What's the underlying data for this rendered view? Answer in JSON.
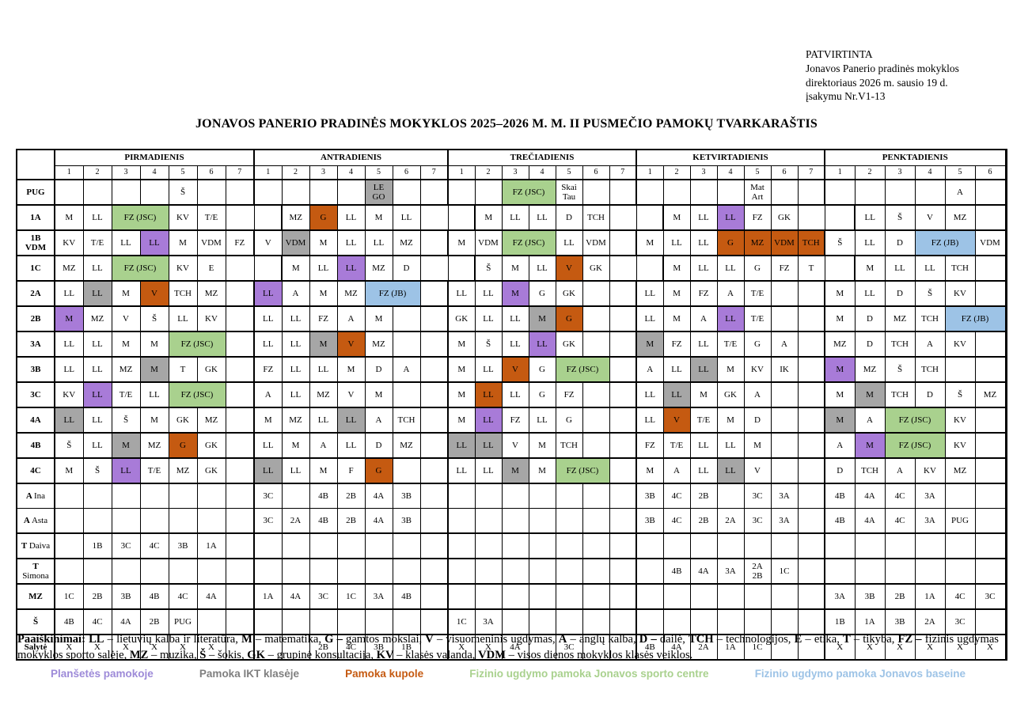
{
  "approval": {
    "l1": "PATVIRTINTA",
    "l2": "Jonavos Panerio pradinės mokyklos",
    "l3": "direktoriaus 2026 m. sausio 19 d.",
    "l4": "įsakymu Nr.V1-13"
  },
  "title": "JONAVOS PANERIO PRADINĖS MOKYKLOS 2025–2026 M. M. II PUSMEČIO PAMOKŲ TVARKARAŠTIS",
  "colors": {
    "g": "#a9d18e",
    "p": "#a87bd8",
    "y": "#a6a6a6",
    "o": "#c55a11",
    "b": "#9dc3e6",
    "legend_purple": "#9d8ad8",
    "legend_gray": "#7f7f7f",
    "legend_orange": "#c55a11",
    "legend_green": "#a9d18e",
    "legend_blue": "#9dc3e6"
  },
  "days": [
    {
      "name": "PIRMADIENIS",
      "periods": 7
    },
    {
      "name": "ANTRADIENIS",
      "periods": 7
    },
    {
      "name": "TREČIADIENIS",
      "periods": 7
    },
    {
      "name": "KETVIRTADIENIS",
      "periods": 7
    },
    {
      "name": "PENKTADIENIS",
      "periods": 6
    }
  ],
  "rows": [
    {
      "label": {
        "b": "PUG"
      },
      "thick": true,
      "cells": [
        [
          "",
          "",
          "",
          "",
          "Š",
          "",
          ""
        ],
        [
          "",
          "",
          "",
          "",
          [
            "LE\nGO",
            "y"
          ],
          "",
          ""
        ],
        [
          "",
          "",
          [
            "FZ (JSC)",
            "g",
            2
          ],
          "Skai\nTau",
          "",
          ""
        ],
        [
          "",
          "",
          "",
          "",
          "Mat\nArt",
          "",
          ""
        ],
        [
          "",
          "",
          "",
          "",
          "A",
          ""
        ]
      ]
    },
    {
      "label": {
        "b": "1A"
      },
      "thick": true,
      "cells": [
        [
          "M",
          "LL",
          [
            "FZ (JSC)",
            "g",
            2
          ],
          "KV",
          "T/E",
          "",
          ""
        ],
        [
          "MZ",
          [
            "G",
            "o"
          ],
          "LL",
          "M",
          "LL",
          "",
          ""
        ],
        [
          "M",
          "LL",
          "LL",
          "D",
          "TCH",
          "",
          ""
        ],
        [
          "M",
          "LL",
          [
            "LL",
            "p"
          ],
          "FZ",
          "GK",
          "",
          ""
        ],
        [
          "LL",
          "Š",
          "V",
          "MZ",
          "",
          ""
        ]
      ]
    },
    {
      "label": {
        "b": "1B",
        "b2": "VDM"
      },
      "cells": [
        [
          "KV",
          "T/E",
          "LL",
          [
            "LL",
            "p"
          ],
          "M",
          "VDM",
          "FZ"
        ],
        [
          "V",
          [
            "VDM",
            "y"
          ],
          "M",
          "LL",
          "LL",
          "MZ",
          ""
        ],
        [
          "M",
          "VDM",
          [
            "FZ (JSC)",
            "g",
            2
          ],
          "LL",
          "VDM",
          ""
        ],
        [
          "M",
          "LL",
          "LL",
          [
            "G",
            "o"
          ],
          [
            "MZ",
            "o"
          ],
          [
            "VDM",
            "o"
          ],
          [
            "TCH",
            "o"
          ]
        ],
        [
          "Š",
          "LL",
          "D",
          [
            "FZ (JB)",
            "b",
            2
          ],
          "VDM"
        ]
      ]
    },
    {
      "label": {
        "b": "1C"
      },
      "cells": [
        [
          "MZ",
          "LL",
          [
            "FZ (JSC)",
            "g",
            2
          ],
          "KV",
          "E",
          "",
          ""
        ],
        [
          "M",
          "LL",
          [
            "LL",
            "p"
          ],
          "MZ",
          "D",
          "",
          ""
        ],
        [
          "Š",
          "M",
          "LL",
          [
            "V",
            "o"
          ],
          "GK",
          "",
          ""
        ],
        [
          "M",
          "LL",
          "LL",
          "G",
          "FZ",
          "T",
          ""
        ],
        [
          "M",
          "LL",
          "LL",
          "TCH",
          "",
          ""
        ]
      ]
    },
    {
      "label": {
        "b": "2A"
      },
      "cells": [
        [
          "LL",
          [
            "LL",
            "y"
          ],
          "M",
          [
            "V",
            "o"
          ],
          "TCH",
          "MZ",
          ""
        ],
        [
          [
            "LL",
            "p"
          ],
          "A",
          "M",
          "MZ",
          [
            "FZ (JB)",
            "b",
            2
          ],
          ""
        ],
        [
          "LL",
          "LL",
          [
            "M",
            "p"
          ],
          "G",
          "GK",
          "",
          ""
        ],
        [
          "LL",
          "M",
          "FZ",
          "A",
          "T/E",
          "",
          ""
        ],
        [
          "M",
          "LL",
          "D",
          "Š",
          "KV",
          ""
        ]
      ]
    },
    {
      "label": {
        "b": "2B"
      },
      "cells": [
        [
          [
            "M",
            "p"
          ],
          "MZ",
          "V",
          "Š",
          "LL",
          "KV",
          ""
        ],
        [
          "LL",
          "LL",
          "FZ",
          "A",
          "M",
          "",
          ""
        ],
        [
          "GK",
          "LL",
          "LL",
          [
            "M",
            "y"
          ],
          [
            "G",
            "o"
          ],
          "",
          ""
        ],
        [
          "LL",
          "M",
          "A",
          [
            "LL",
            "p"
          ],
          "T/E",
          "",
          ""
        ],
        [
          "M",
          "D",
          "MZ",
          "TCH",
          [
            "FZ (JB)",
            "b",
            2
          ]
        ]
      ]
    },
    {
      "label": {
        "b": "3A"
      },
      "cells": [
        [
          "LL",
          "LL",
          "M",
          "M",
          [
            "FZ (JSC)",
            "g",
            2
          ],
          ""
        ],
        [
          "LL",
          "LL",
          [
            "M",
            "y"
          ],
          [
            "V",
            "o"
          ],
          "MZ",
          "",
          ""
        ],
        [
          "M",
          "Š",
          "LL",
          [
            "LL",
            "p"
          ],
          "GK",
          "",
          ""
        ],
        [
          [
            "M",
            "y"
          ],
          "FZ",
          "LL",
          "T/E",
          "G",
          "A",
          ""
        ],
        [
          "MZ",
          "D",
          "TCH",
          "A",
          "KV",
          ""
        ]
      ]
    },
    {
      "label": {
        "b": "3B"
      },
      "cells": [
        [
          "LL",
          "LL",
          "MZ",
          [
            "M",
            "y"
          ],
          "T",
          "GK",
          ""
        ],
        [
          "FZ",
          "LL",
          "LL",
          "M",
          "D",
          "A",
          ""
        ],
        [
          "M",
          "LL",
          [
            "V",
            "o"
          ],
          "G",
          [
            "FZ (JSC)",
            "g",
            2
          ],
          ""
        ],
        [
          "A",
          "LL",
          [
            "LL",
            "y"
          ],
          "M",
          "KV",
          "IK",
          ""
        ],
        [
          [
            "M",
            "p"
          ],
          "MZ",
          "Š",
          "TCH",
          "",
          ""
        ]
      ]
    },
    {
      "label": {
        "b": "3C"
      },
      "cells": [
        [
          "KV",
          [
            "LL",
            "p"
          ],
          "T/E",
          "LL",
          [
            "FZ (JSC)",
            "g",
            2
          ],
          ""
        ],
        [
          "A",
          "LL",
          "MZ",
          "V",
          "M",
          "",
          ""
        ],
        [
          "M",
          [
            "LL",
            "o"
          ],
          "LL",
          "G",
          "FZ",
          "",
          ""
        ],
        [
          "LL",
          [
            "LL",
            "y"
          ],
          "M",
          "GK",
          "A",
          "",
          ""
        ],
        [
          "M",
          [
            "M",
            "y"
          ],
          "TCH",
          "D",
          "Š",
          "MZ"
        ]
      ]
    },
    {
      "label": {
        "b": "4A"
      },
      "cells": [
        [
          [
            "LL",
            "y"
          ],
          "LL",
          "Š",
          "M",
          "GK",
          "MZ",
          ""
        ],
        [
          "M",
          "MZ",
          "LL",
          [
            "LL",
            "y"
          ],
          "A",
          "TCH",
          ""
        ],
        [
          "M",
          [
            "LL",
            "p"
          ],
          "FZ",
          "LL",
          "G",
          "",
          ""
        ],
        [
          "LL",
          [
            "V",
            "o"
          ],
          "T/E",
          "M",
          "D",
          "",
          ""
        ],
        [
          [
            "M",
            "y"
          ],
          "A",
          [
            "FZ (JSC)",
            "g",
            2
          ],
          "KV",
          ""
        ]
      ]
    },
    {
      "label": {
        "b": "4B"
      },
      "cells": [
        [
          "Š",
          "LL",
          [
            "M",
            "y"
          ],
          "MZ",
          [
            "G",
            "o"
          ],
          "GK",
          ""
        ],
        [
          "LL",
          "M",
          "A",
          "LL",
          "D",
          "MZ",
          ""
        ],
        [
          [
            "LL",
            "y"
          ],
          [
            "LL",
            "y"
          ],
          "V",
          "M",
          "TCH",
          "",
          ""
        ],
        [
          "FZ",
          "T/E",
          "LL",
          "LL",
          "M",
          "",
          ""
        ],
        [
          "A",
          [
            "M",
            "p"
          ],
          [
            "FZ (JSC)",
            "g",
            2
          ],
          "KV",
          ""
        ]
      ]
    },
    {
      "label": {
        "b": "4C"
      },
      "cells": [
        [
          "M",
          "Š",
          [
            "LL",
            "p"
          ],
          "T/E",
          "MZ",
          "GK",
          ""
        ],
        [
          [
            "LL",
            "y"
          ],
          "LL",
          "M",
          "F",
          [
            "G",
            "o"
          ],
          "",
          ""
        ],
        [
          "LL",
          "LL",
          [
            "M",
            "y"
          ],
          "M",
          [
            "FZ (JSC)",
            "g",
            2
          ],
          ""
        ],
        [
          "M",
          "A",
          "LL",
          [
            "LL",
            "y"
          ],
          "V",
          "",
          ""
        ],
        [
          "D",
          "TCH",
          "A",
          "KV",
          "MZ",
          ""
        ]
      ]
    },
    {
      "label": {
        "b": "A",
        "r": "Ina"
      },
      "thick": true,
      "cells": [
        [
          "",
          "",
          "",
          "",
          "",
          "",
          ""
        ],
        [
          "3C",
          "",
          "4B",
          "2B",
          "4A",
          "3B",
          ""
        ],
        [
          "",
          "",
          "",
          "",
          "",
          "",
          ""
        ],
        [
          "3B",
          "4C",
          "2B",
          "",
          "3C",
          "3A",
          ""
        ],
        [
          "4B",
          "4A",
          "4C",
          "3A",
          "",
          ""
        ]
      ]
    },
    {
      "label": {
        "b": "A",
        "r": "Asta"
      },
      "thin": true,
      "cells": [
        [
          "",
          "",
          "",
          "",
          "",
          "",
          ""
        ],
        [
          "3C",
          "2A",
          "4B",
          "2B",
          "4A",
          "3B",
          ""
        ],
        [
          "",
          "",
          "",
          "",
          "",
          "",
          ""
        ],
        [
          "3B",
          "4C",
          "2B",
          "2A",
          "3C",
          "3A",
          ""
        ],
        [
          "4B",
          "4A",
          "4C",
          "3A",
          "PUG",
          ""
        ]
      ]
    },
    {
      "label": {
        "b": "T",
        "r": "Daiva"
      },
      "thick": true,
      "cells": [
        [
          "",
          "1B",
          "3C",
          "4C",
          "3B",
          "1A",
          ""
        ],
        [
          "",
          "",
          "",
          "",
          "",
          "",
          ""
        ],
        [
          "",
          "",
          "",
          "",
          "",
          "",
          ""
        ],
        [
          "",
          "",
          "",
          "",
          "",
          "",
          ""
        ],
        [
          "",
          "",
          "",
          "",
          "",
          ""
        ]
      ]
    },
    {
      "label": {
        "b": "T",
        "r2": "Simona"
      },
      "cells": [
        [
          "",
          "",
          "",
          "",
          "",
          "",
          ""
        ],
        [
          "",
          "",
          "",
          "",
          "",
          "",
          ""
        ],
        [
          "",
          "",
          "",
          "",
          "",
          "",
          ""
        ],
        [
          "",
          "4B",
          "4A",
          "3A",
          "2A\n2B",
          "1C",
          ""
        ],
        [
          "",
          "",
          "",
          "",
          "",
          ""
        ]
      ]
    },
    {
      "label": {
        "b": "MZ"
      },
      "cells": [
        [
          "1C",
          "2B",
          "3B",
          "4B",
          "4C",
          "4A",
          ""
        ],
        [
          "1A",
          "4A",
          "3C",
          "1C",
          "3A",
          "4B",
          ""
        ],
        [
          "",
          "",
          "",
          "",
          "",
          "",
          ""
        ],
        [
          "",
          "",
          "",
          "",
          "",
          "",
          ""
        ],
        [
          "3A",
          "3B",
          "2B",
          "1A",
          "4C",
          "3C"
        ]
      ]
    },
    {
      "label": {
        "b": "Š"
      },
      "cells": [
        [
          "4B",
          "4C",
          "4A",
          "2B",
          "PUG",
          "",
          ""
        ],
        [
          "",
          "",
          "",
          "",
          "",
          "",
          ""
        ],
        [
          "1C",
          "3A",
          "",
          "",
          "",
          "",
          ""
        ],
        [
          "",
          "",
          "",
          "",
          "",
          "",
          ""
        ],
        [
          "1B",
          "1A",
          "3B",
          "2A",
          "3C",
          ""
        ]
      ]
    },
    {
      "label": {
        "b": "Salytė"
      },
      "cells": [
        [
          "X",
          "X",
          "X",
          "X",
          "X",
          "X",
          ""
        ],
        [
          "",
          "",
          "2B",
          "4C",
          "3B",
          "1B",
          ""
        ],
        [
          "X",
          "X",
          "4A",
          "",
          "3C",
          "",
          ""
        ],
        [
          "4B",
          "4A",
          "2A",
          "1A",
          "1C",
          "",
          ""
        ],
        [
          "X",
          "X",
          "X",
          "X",
          "X",
          "X"
        ]
      ]
    }
  ],
  "legend": {
    "explain": [
      [
        "Paaiškinimai: ",
        1
      ],
      [
        "LL",
        1
      ],
      [
        " – lietuvių kalba ir literatūra, ",
        0
      ],
      [
        "M",
        1
      ],
      [
        " – matematika, ",
        0
      ],
      [
        "G – ",
        1
      ],
      [
        "gamtos mokslai, ",
        0
      ],
      [
        "V",
        1
      ],
      [
        " – visuomeninis ugdymas, ",
        0
      ],
      [
        "A",
        1
      ],
      [
        " – anglų kalba, ",
        0
      ],
      [
        "D – ",
        1
      ],
      [
        "dailė, ",
        0
      ],
      [
        "TCH",
        1
      ],
      [
        " – technologijos, ",
        0
      ],
      [
        "E",
        1
      ],
      [
        " – etika, ",
        0
      ],
      [
        "T",
        1
      ],
      [
        " – tikyba, ",
        0
      ],
      [
        "FZ – ",
        1
      ],
      [
        "fizinis ugdymas mokyklos sporto salėje, ",
        0
      ],
      [
        "MZ",
        1
      ],
      [
        " – muzika, ",
        0
      ],
      [
        "Š",
        1
      ],
      [
        " – šokis, ",
        0
      ],
      [
        "GK",
        1
      ],
      [
        " – grupinė konsultacija, ",
        0
      ],
      [
        "KV",
        1
      ],
      [
        " – klasės valanda, ",
        0
      ],
      [
        "VDM",
        1
      ],
      [
        " – visos dienos mokyklos klasės veiklos.",
        0
      ]
    ],
    "colored": [
      {
        "t": "Planšetės pamokoje",
        "c": "legend_purple",
        "n": "legend-item-tablet"
      },
      {
        "t": "Pamoka IKT klasėje",
        "c": "legend_gray",
        "n": "legend-item-ikt"
      },
      {
        "t": "Pamoka kupole",
        "c": "legend_orange",
        "n": "legend-item-dome"
      },
      {
        "t": "Fizinio ugdymo pamoka Jonavos sporto centre",
        "c": "legend_green",
        "n": "legend-item-sport-centre"
      },
      {
        "t": "Fizinio ugdymo pamoka Jonavos baseine",
        "c": "legend_blue",
        "n": "legend-item-pool"
      }
    ]
  }
}
